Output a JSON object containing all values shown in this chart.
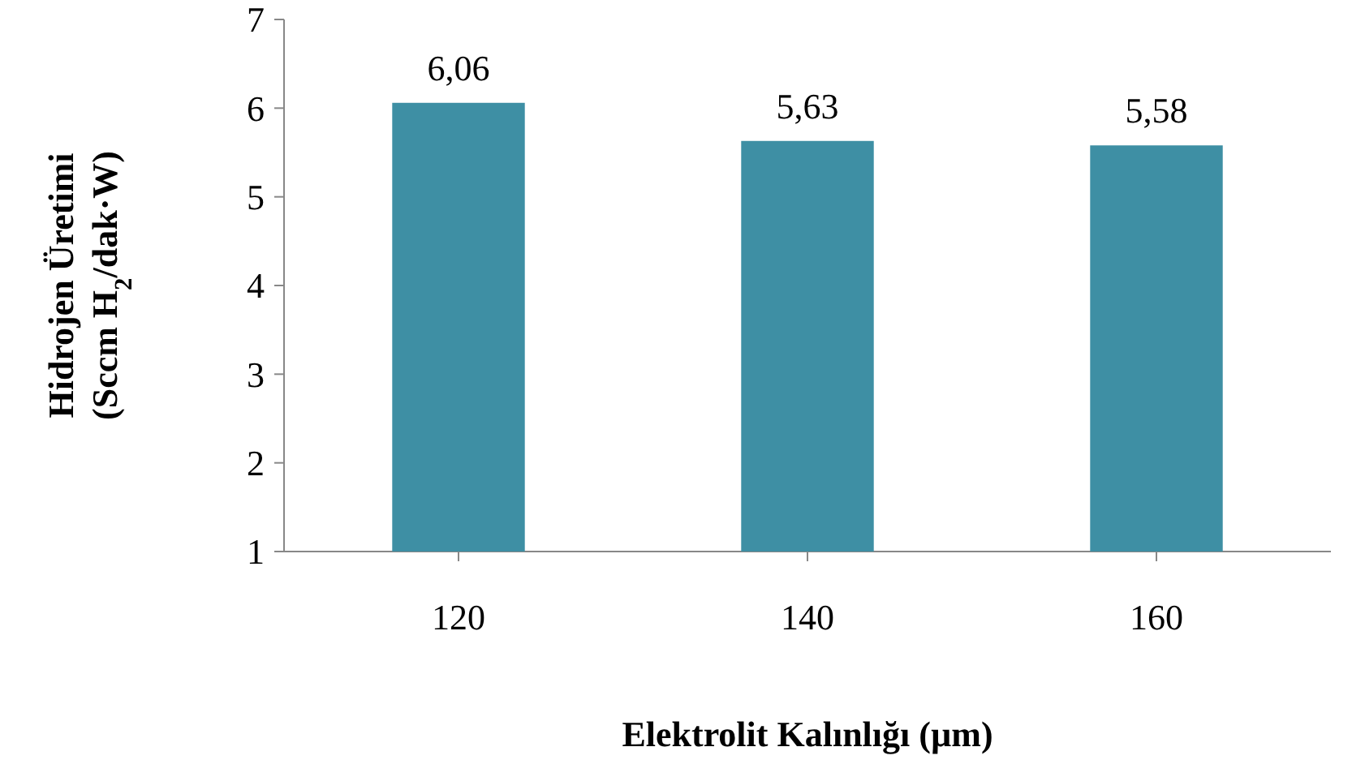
{
  "chart_data": {
    "type": "bar",
    "xlabel": "Elektrolit Kalınlığı (µm)",
    "ylabel": "Hidrojen Üretimi\n(Sccm H$_{2}$/dak·W)",
    "categories": [
      "120",
      "140",
      "160"
    ],
    "values": [
      6.06,
      5.63,
      5.58
    ],
    "value_labels": [
      "6,06",
      "5,63",
      "5,58"
    ],
    "color": "#3e8fa4",
    "ylim": [
      1,
      7
    ],
    "yticks": [
      1,
      2,
      3,
      4,
      5,
      6,
      7
    ],
    "grid": false
  }
}
